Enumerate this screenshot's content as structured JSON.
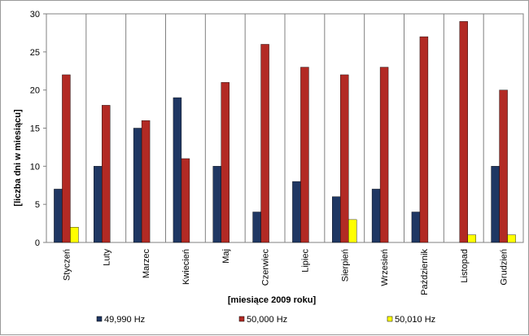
{
  "chart_data": {
    "type": "bar",
    "categories": [
      "Styczeń",
      "Luty",
      "Marzec",
      "Kwiecień",
      "Maj",
      "Czerwiec",
      "Lipiec",
      "Sierpień",
      "Wrzesień",
      "Październik",
      "Listopad",
      "Grudzień"
    ],
    "series": [
      {
        "name": "49,990 Hz",
        "color": "#1f3763",
        "values": [
          7,
          10,
          15,
          19,
          10,
          4,
          8,
          6,
          7,
          4,
          0,
          10
        ]
      },
      {
        "name": "50,000 Hz",
        "color": "#b22a24",
        "values": [
          22,
          18,
          16,
          11,
          21,
          26,
          23,
          22,
          23,
          27,
          29,
          20
        ]
      },
      {
        "name": "50,010 Hz",
        "color": "#ffff00",
        "values": [
          2,
          0,
          0,
          0,
          0,
          0,
          0,
          3,
          0,
          0,
          1,
          1
        ]
      }
    ],
    "title": "",
    "xlabel": "[miesiące 2009 roku]",
    "ylabel": "[liczba dni w miesiącu]",
    "ylim": [
      0,
      30
    ],
    "yticks": [
      "0",
      "5",
      "10",
      "15",
      "20",
      "25",
      "30"
    ],
    "grid": "vertical lines between categories",
    "legend_position": "bottom"
  }
}
